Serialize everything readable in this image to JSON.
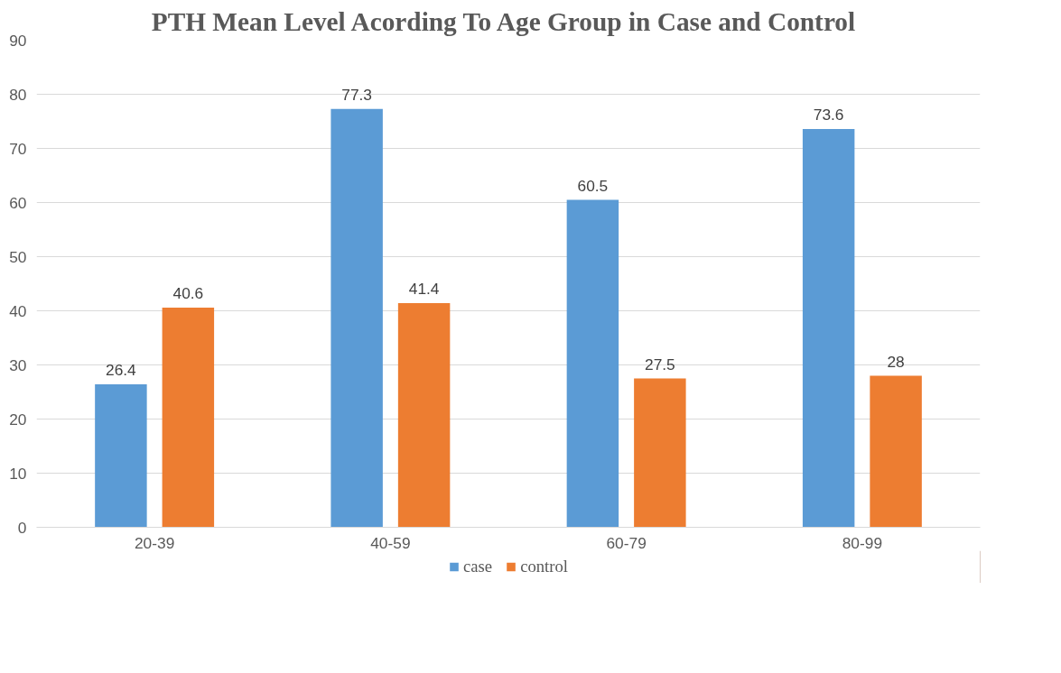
{
  "chart_data": {
    "type": "bar",
    "title": "PTH  Mean Level Acording To Age Group in Case and Control",
    "categories": [
      "20-39",
      "40-59",
      "60-79",
      "80-99"
    ],
    "series": [
      {
        "name": "case",
        "color": "#5b9bd5",
        "values": [
          26.4,
          77.3,
          60.5,
          73.6
        ]
      },
      {
        "name": "control",
        "color": "#ed7d31",
        "values": [
          40.6,
          41.4,
          27.5,
          28
        ]
      }
    ],
    "ylim": [
      0,
      90
    ],
    "yticks": [
      0,
      10,
      20,
      30,
      40,
      50,
      60,
      70,
      80,
      90
    ],
    "grid": "y",
    "legend": "bottom",
    "data_labels": true
  }
}
